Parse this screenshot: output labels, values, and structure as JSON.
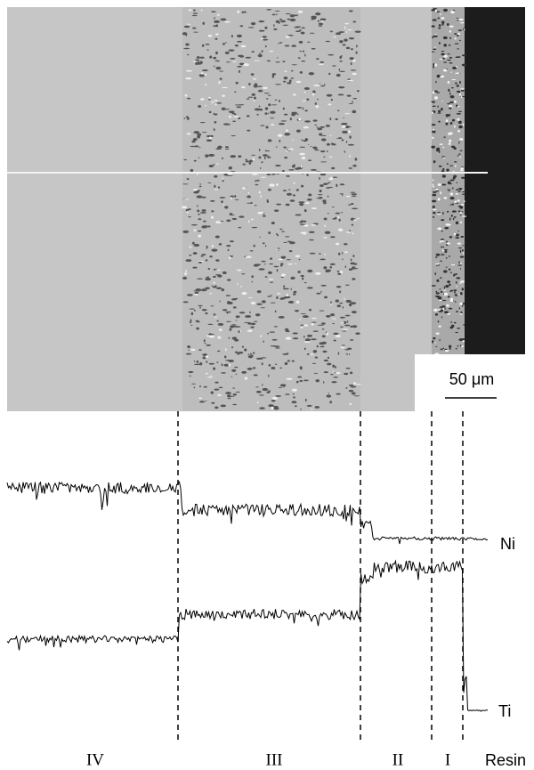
{
  "micrograph": {
    "scale_bar": "50 μm"
  },
  "profiles": {
    "labels": [
      "Ni",
      "Ti"
    ]
  },
  "zones": [
    "IV",
    "III",
    "II",
    "I",
    "Resin"
  ]
}
